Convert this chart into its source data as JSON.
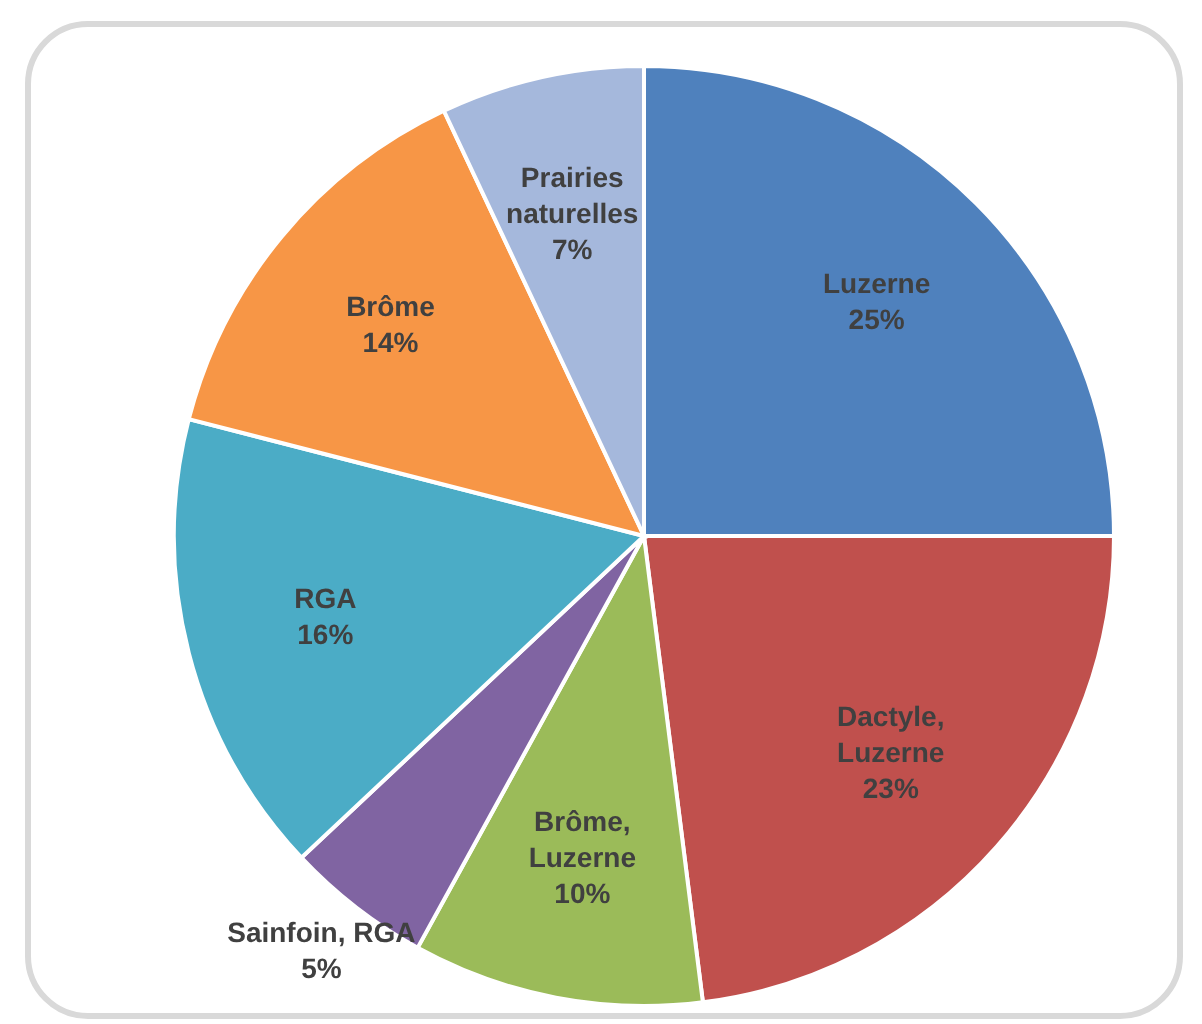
{
  "chart_data": {
    "type": "pie",
    "categories": [
      "Luzerne",
      "Dactyle, Luzerne",
      "Brôme, Luzerne",
      "Sainfoin, RGA",
      "RGA",
      "Brôme",
      "Prairies naturelles"
    ],
    "values": [
      25,
      23,
      10,
      5,
      16,
      14,
      7
    ],
    "value_labels": [
      "25%",
      "23%",
      "10%",
      "5%",
      "16%",
      "14%",
      "7%"
    ],
    "colors": [
      "#4f81bd",
      "#c0504d",
      "#9bbb59",
      "#8064a2",
      "#4bacc6",
      "#f79646",
      "#a5b8dc"
    ]
  }
}
